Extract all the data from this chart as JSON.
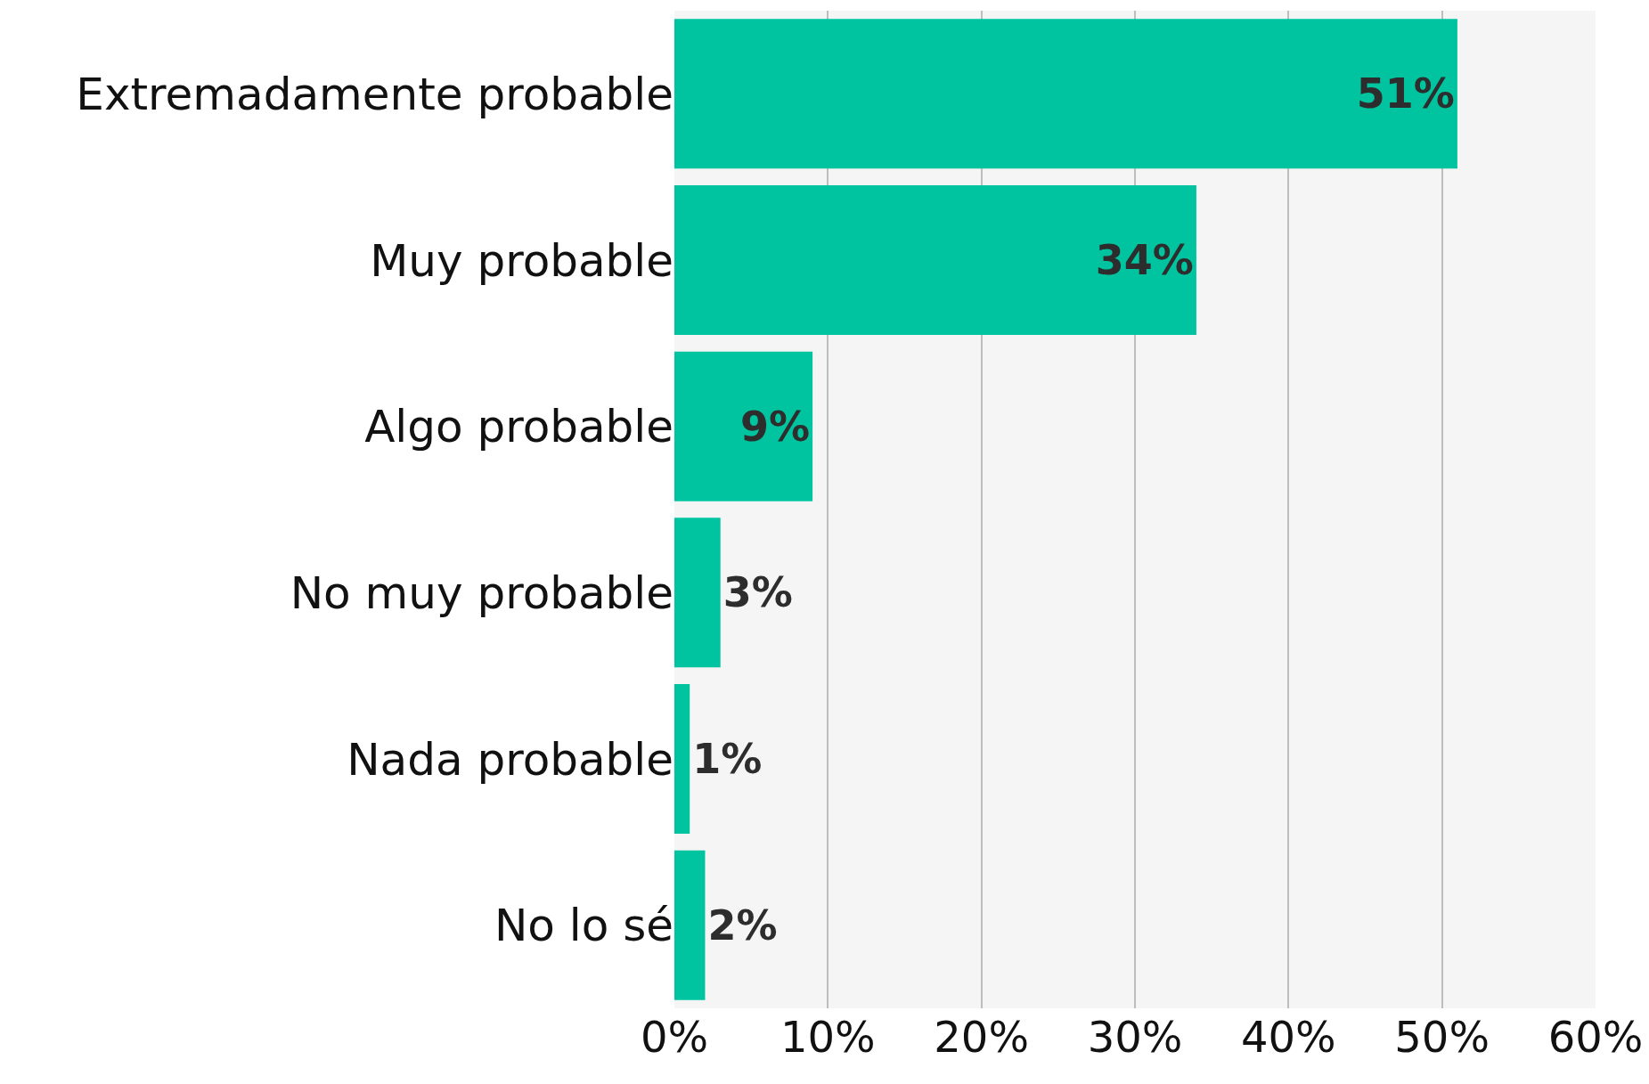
{
  "chart_data": {
    "type": "bar",
    "orientation": "horizontal",
    "categories": [
      "Extremadamente probable",
      "Muy probable",
      "Algo probable",
      "No muy probable",
      "Nada probable",
      "No lo sé"
    ],
    "values": [
      51,
      34,
      9,
      3,
      1,
      2
    ],
    "color": "#00c49f",
    "data_labels": true,
    "value_labels": [
      "51%",
      "34%",
      "9%",
      "3%",
      "1%",
      "2%"
    ],
    "xlim": [
      0,
      60
    ],
    "xticks": [
      {
        "value": 0,
        "label": "0%"
      },
      {
        "value": 10,
        "label": "10%"
      },
      {
        "value": 20,
        "label": "20%"
      },
      {
        "value": 30,
        "label": "30%"
      },
      {
        "value": 40,
        "label": "40%"
      },
      {
        "value": 50,
        "label": "50%"
      },
      {
        "value": 60,
        "label": "60%"
      }
    ],
    "grid": "x",
    "legend": false
  }
}
